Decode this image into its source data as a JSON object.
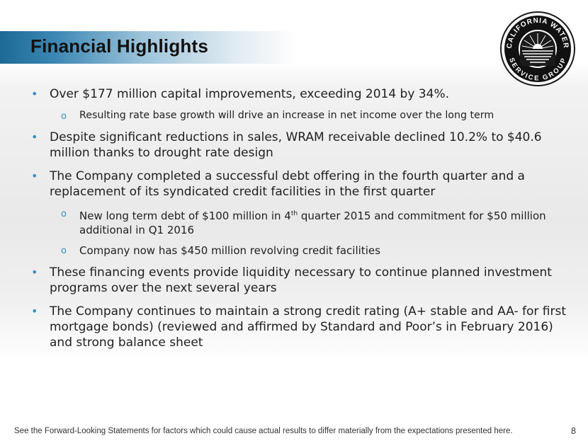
{
  "slide": {
    "title": "Financial Highlights",
    "page_number": "8",
    "footer": "See the Forward-Looking Statements for factors which could cause actual results to differ materially from the expectations presented here.",
    "logo": {
      "top_text": "CALIFORNIA WATER",
      "bottom_text": "SERVICE GROUP"
    },
    "colors": {
      "title_bar": "#1d6a96",
      "bullet": "#3a8ec2"
    },
    "bullets": [
      {
        "text": "Over $177 million capital improvements, exceeding 2014 by 34%."
      },
      {
        "text": "Resulting rate base growth will drive an increase in net income over the long term"
      },
      {
        "text": "Despite significant reductions in sales, WRAM receivable declined 10.2% to $40.6 million thanks to drought rate design"
      },
      {
        "text": "The Company completed a successful debt offering in the fourth quarter and a replacement of its syndicated credit facilities in the first quarter"
      },
      {
        "text_before": "New long term debt of $100 million in 4",
        "sup": "th",
        "text_after": " quarter 2015 and commitment for $50 million additional in Q1 2016"
      },
      {
        "text": "Company now has $450 million revolving credit facilities"
      },
      {
        "text": "These financing events provide liquidity necessary to continue  planned investment programs over the next several years"
      },
      {
        "text": "The Company continues to maintain a strong credit rating (A+ stable and AA- for first mortgage bonds) (reviewed and affirmed by Standard and Poor’s in February 2016) and strong balance sheet"
      }
    ]
  }
}
